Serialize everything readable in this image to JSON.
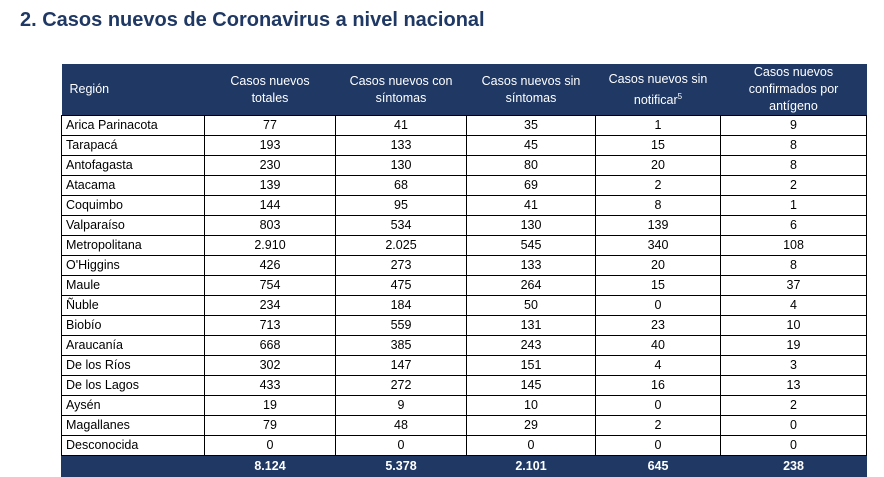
{
  "title": "2. Casos nuevos de Coronavirus a nivel nacional",
  "columns": {
    "region": "Región",
    "totales": [
      "Casos nuevos",
      "totales"
    ],
    "con_sintomas": [
      "Casos nuevos con",
      "síntomas"
    ],
    "sin_sintomas": [
      "Casos nuevos sin",
      "síntomas"
    ],
    "sin_notificar": [
      "Casos nuevos sin",
      "notificar",
      "5"
    ],
    "antigeno": [
      "Casos nuevos",
      "confirmados por antígeno"
    ]
  },
  "rows": [
    [
      "Arica Parinacota",
      "77",
      "41",
      "35",
      "1",
      "9"
    ],
    [
      "Tarapacá",
      "193",
      "133",
      "45",
      "15",
      "8"
    ],
    [
      "Antofagasta",
      "230",
      "130",
      "80",
      "20",
      "8"
    ],
    [
      "Atacama",
      "139",
      "68",
      "69",
      "2",
      "2"
    ],
    [
      "Coquimbo",
      "144",
      "95",
      "41",
      "8",
      "1"
    ],
    [
      "Valparaíso",
      "803",
      "534",
      "130",
      "139",
      "6"
    ],
    [
      "Metropolitana",
      "2.910",
      "2.025",
      "545",
      "340",
      "108"
    ],
    [
      "O'Higgins",
      "426",
      "273",
      "133",
      "20",
      "8"
    ],
    [
      "Maule",
      "754",
      "475",
      "264",
      "15",
      "37"
    ],
    [
      "Ñuble",
      "234",
      "184",
      "50",
      "0",
      "4"
    ],
    [
      "Biobío",
      "713",
      "559",
      "131",
      "23",
      "10"
    ],
    [
      "Araucanía",
      "668",
      "385",
      "243",
      "40",
      "19"
    ],
    [
      "De los Ríos",
      "302",
      "147",
      "151",
      "4",
      "3"
    ],
    [
      "De los Lagos",
      "433",
      "272",
      "145",
      "16",
      "13"
    ],
    [
      "Aysén",
      "19",
      "9",
      "10",
      "0",
      "2"
    ],
    [
      "Magallanes",
      "79",
      "48",
      "29",
      "2",
      "0"
    ],
    [
      "Desconocida",
      "0",
      "0",
      "0",
      "0",
      "0"
    ]
  ],
  "totals": [
    "",
    "8.124",
    "5.378",
    "2.101",
    "645",
    "238"
  ]
}
